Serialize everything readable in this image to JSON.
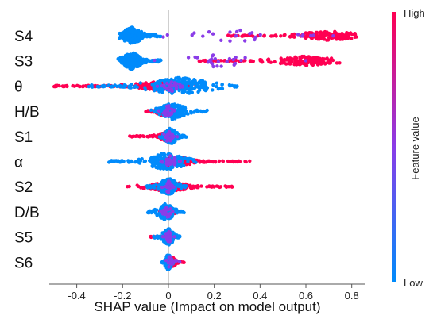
{
  "chart_data": {
    "type": "scatter",
    "subtype": "shap-beeswarm",
    "xlabel": "SHAP value (Impact on model output)",
    "xticks": [
      -0.4,
      -0.2,
      0,
      0.2,
      0.4,
      0.6,
      0.8
    ],
    "xlim": [
      -0.52,
      0.86
    ],
    "features": [
      {
        "name": "S4",
        "low_range": [
          -0.22,
          -0.03
        ],
        "high_range": [
          0.26,
          0.84
        ],
        "low_peak": -0.16,
        "high_peak": 0.7
      },
      {
        "name": "S3",
        "low_range": [
          -0.22,
          -0.03
        ],
        "high_range": [
          0.12,
          0.76
        ],
        "low_peak": -0.16,
        "high_peak": 0.6
      },
      {
        "name": "θ",
        "low_range": [
          -0.35,
          0.3
        ],
        "high_range": [
          -0.5,
          0.12
        ],
        "low_peak": 0.05,
        "high_peak": -0.02
      },
      {
        "name": "H/B",
        "low_range": [
          -0.08,
          0.18
        ],
        "high_range": [
          -0.1,
          0.06
        ],
        "low_peak": 0.02,
        "high_peak": -0.02
      },
      {
        "name": "S1",
        "low_range": [
          -0.04,
          0.08
        ],
        "high_range": [
          -0.17,
          0.02
        ],
        "low_peak": 0.01,
        "high_peak": -0.01
      },
      {
        "name": "α",
        "low_range": [
          -0.26,
          0.12
        ],
        "high_range": [
          -0.02,
          0.36
        ],
        "low_peak": -0.01,
        "high_peak": 0.03
      },
      {
        "name": "S2",
        "low_range": [
          -0.1,
          0.08
        ],
        "high_range": [
          -0.18,
          0.28
        ],
        "low_peak": 0.0,
        "high_peak": 0.0
      },
      {
        "name": "D/B",
        "low_range": [
          -0.09,
          0.07
        ],
        "high_range": [
          -0.04,
          0.06
        ],
        "low_peak": -0.01,
        "high_peak": 0.0
      },
      {
        "name": "S5",
        "low_range": [
          -0.07,
          0.05
        ],
        "high_range": [
          -0.08,
          0.04
        ],
        "low_peak": 0.0,
        "high_peak": 0.0
      },
      {
        "name": "S6",
        "low_range": [
          -0.03,
          0.03
        ],
        "high_range": [
          0.0,
          0.07
        ],
        "low_peak": 0.0,
        "high_peak": 0.02
      }
    ],
    "colorbar": {
      "title": "Feature value",
      "high_label": "High",
      "low_label": "Low",
      "high_color": "#ff0052",
      "low_color": "#008bfb"
    },
    "zero_line": true,
    "grid": false
  }
}
